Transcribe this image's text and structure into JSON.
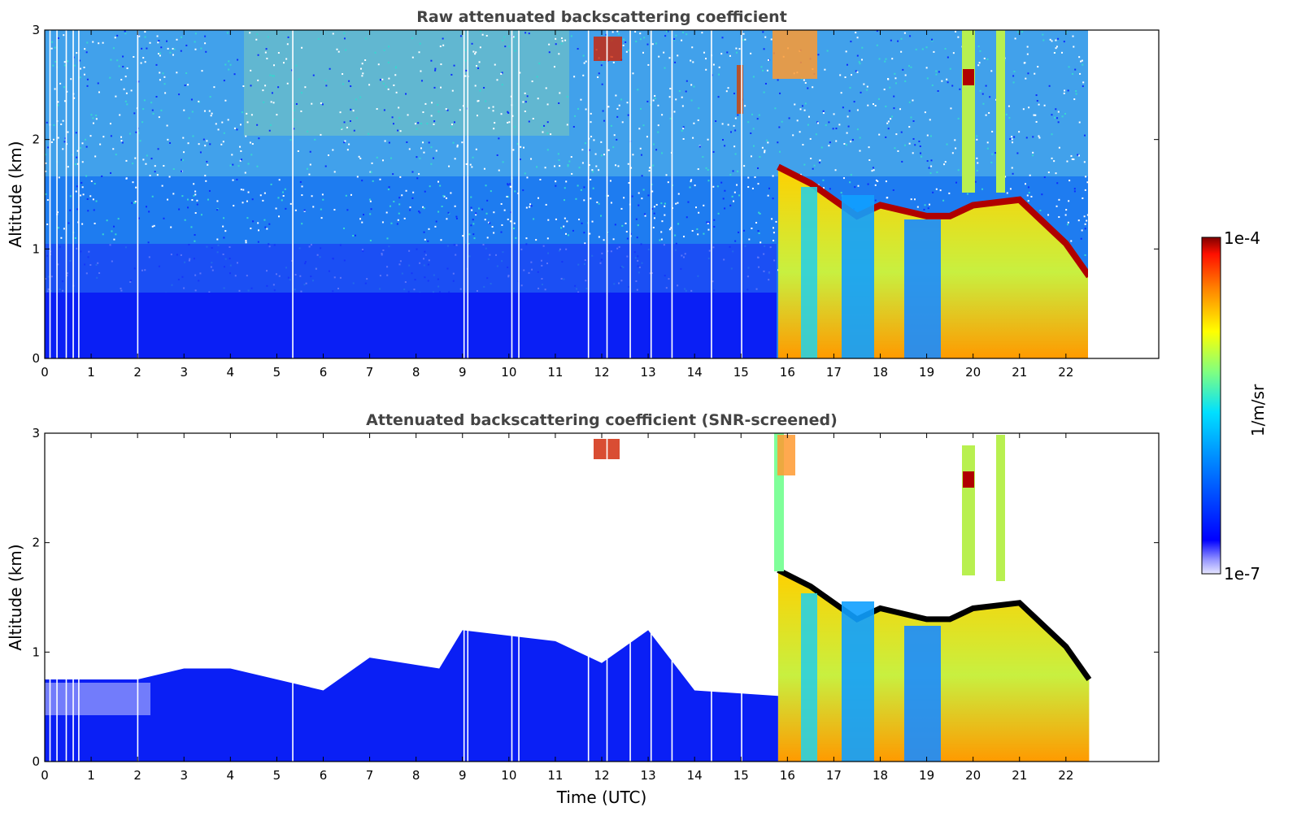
{
  "chart_data": [
    {
      "type": "heatmap",
      "title": "Raw attenuated backscattering coefficient",
      "xlabel": "",
      "ylabel": "Altitude (km)",
      "xlim": [
        0,
        24
      ],
      "ylim": [
        0,
        3
      ],
      "x_ticks": [
        "0",
        "1",
        "2",
        "3",
        "4",
        "5",
        "6",
        "7",
        "8",
        "9",
        "10",
        "11",
        "12",
        "13",
        "14",
        "15",
        "16",
        "17",
        "18",
        "19",
        "20",
        "21",
        "22"
      ],
      "y_ticks": [
        "0",
        "1",
        "2",
        "3"
      ],
      "data_end_time": 22.5,
      "aerosol_layer_top_km": 0.5,
      "cloud_base_km": [
        {
          "t": 15.8,
          "z": 1.75
        },
        {
          "t": 16.5,
          "z": 1.6
        },
        {
          "t": 17.0,
          "z": 1.45
        },
        {
          "t": 17.5,
          "z": 1.3
        },
        {
          "t": 18.0,
          "z": 1.4
        },
        {
          "t": 19.0,
          "z": 1.3
        },
        {
          "t": 19.5,
          "z": 1.3
        },
        {
          "t": 20.0,
          "z": 1.4
        },
        {
          "t": 21.0,
          "z": 1.45
        },
        {
          "t": 21.5,
          "z": 1.25
        },
        {
          "t": 22.0,
          "z": 1.05
        },
        {
          "t": 22.5,
          "z": 0.75
        }
      ]
    },
    {
      "type": "heatmap",
      "title": "Attenuated backscattering coefficient (SNR-screened)",
      "xlabel": "Time (UTC)",
      "ylabel": "Altitude (km)",
      "xlim": [
        0,
        24
      ],
      "ylim": [
        0,
        3
      ],
      "x_ticks": [
        "0",
        "1",
        "2",
        "3",
        "4",
        "5",
        "6",
        "7",
        "8",
        "9",
        "10",
        "11",
        "12",
        "13",
        "14",
        "15",
        "16",
        "17",
        "18",
        "19",
        "20",
        "21",
        "22"
      ],
      "y_ticks": [
        "0",
        "1",
        "2",
        "3"
      ],
      "data_end_time": 22.5,
      "boundary_layer_top_km": [
        {
          "t": 0,
          "z": 0.75
        },
        {
          "t": 2,
          "z": 0.75
        },
        {
          "t": 3,
          "z": 0.85
        },
        {
          "t": 4,
          "z": 0.85
        },
        {
          "t": 6,
          "z": 0.65
        },
        {
          "t": 7,
          "z": 0.95
        },
        {
          "t": 8.5,
          "z": 0.85
        },
        {
          "t": 9,
          "z": 1.2
        },
        {
          "t": 11,
          "z": 1.1
        },
        {
          "t": 12,
          "z": 0.9
        },
        {
          "t": 13,
          "z": 1.2
        },
        {
          "t": 14,
          "z": 0.65
        },
        {
          "t": 15.8,
          "z": 0.6
        }
      ]
    }
  ],
  "colorbar": {
    "label": "1/m/sr",
    "min_label": "1e-7",
    "max_label": "1e-4",
    "scale": "log",
    "colormap": "jet"
  }
}
